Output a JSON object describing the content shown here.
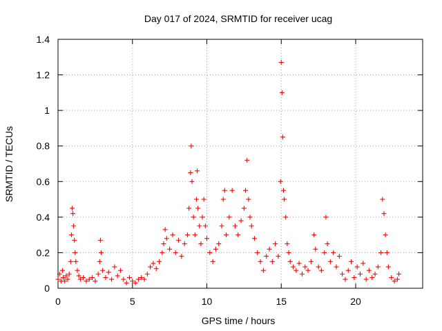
{
  "chart_data": {
    "type": "scatter",
    "title": "Day 017 of 2024, SRMTID for receiver ucag",
    "xlabel": "GPS time / hours",
    "ylabel": "SRMTID / TECUs",
    "xlim": [
      0,
      24.5
    ],
    "ylim": [
      0,
      1.4
    ],
    "xticks": [
      0,
      5,
      10,
      15,
      20
    ],
    "xtick_labels": [
      "0",
      "5",
      "10",
      "15",
      "20"
    ],
    "yticks": [
      0,
      0.2,
      0.4,
      0.6,
      0.8,
      1,
      1.2,
      1.4
    ],
    "ytick_labels": [
      "0",
      "0.2",
      "0.4",
      "0.6",
      "0.8",
      "1",
      "1.2",
      "1.4"
    ],
    "grid": true,
    "marker": "+",
    "color": "#ff0000",
    "series": [
      {
        "name": "SRMTID",
        "points": [
          [
            0.0,
            0.05
          ],
          [
            0.1,
            0.08
          ],
          [
            0.2,
            0.04
          ],
          [
            0.3,
            0.1
          ],
          [
            0.35,
            0.06
          ],
          [
            0.45,
            0.04
          ],
          [
            0.55,
            0.07
          ],
          [
            0.65,
            0.05
          ],
          [
            0.75,
            0.08
          ],
          [
            0.85,
            0.15
          ],
          [
            0.9,
            0.3
          ],
          [
            0.95,
            0.45
          ],
          [
            1.0,
            0.42
          ],
          [
            1.05,
            0.35
          ],
          [
            1.1,
            0.27
          ],
          [
            1.15,
            0.2
          ],
          [
            1.2,
            0.15
          ],
          [
            1.3,
            0.1
          ],
          [
            1.4,
            0.07
          ],
          [
            1.5,
            0.05
          ],
          [
            1.7,
            0.06
          ],
          [
            1.9,
            0.04
          ],
          [
            2.1,
            0.05
          ],
          [
            2.3,
            0.06
          ],
          [
            2.5,
            0.04
          ],
          [
            2.7,
            0.08
          ],
          [
            2.8,
            0.15
          ],
          [
            2.85,
            0.27
          ],
          [
            2.9,
            0.2
          ],
          [
            3.0,
            0.1
          ],
          [
            3.2,
            0.06
          ],
          [
            3.4,
            0.09
          ],
          [
            3.6,
            0.05
          ],
          [
            3.8,
            0.12
          ],
          [
            4.0,
            0.07
          ],
          [
            4.2,
            0.1
          ],
          [
            4.4,
            0.05
          ],
          [
            4.6,
            0.03
          ],
          [
            4.8,
            0.06
          ],
          [
            5.0,
            0.04
          ],
          [
            5.2,
            0.03
          ],
          [
            5.4,
            0.05
          ],
          [
            5.6,
            0.06
          ],
          [
            5.8,
            0.05
          ],
          [
            6.0,
            0.08
          ],
          [
            6.2,
            0.12
          ],
          [
            6.4,
            0.14
          ],
          [
            6.6,
            0.11
          ],
          [
            6.8,
            0.15
          ],
          [
            7.0,
            0.2
          ],
          [
            7.1,
            0.25
          ],
          [
            7.2,
            0.33
          ],
          [
            7.3,
            0.28
          ],
          [
            7.5,
            0.22
          ],
          [
            7.7,
            0.3
          ],
          [
            7.9,
            0.2
          ],
          [
            8.1,
            0.27
          ],
          [
            8.3,
            0.18
          ],
          [
            8.5,
            0.25
          ],
          [
            8.7,
            0.3
          ],
          [
            8.8,
            0.45
          ],
          [
            8.9,
            0.65
          ],
          [
            8.95,
            0.8
          ],
          [
            9.0,
            0.6
          ],
          [
            9.1,
            0.4
          ],
          [
            9.2,
            0.3
          ],
          [
            9.3,
            0.5
          ],
          [
            9.35,
            0.66
          ],
          [
            9.4,
            0.45
          ],
          [
            9.5,
            0.35
          ],
          [
            9.6,
            0.25
          ],
          [
            9.7,
            0.4
          ],
          [
            9.8,
            0.5
          ],
          [
            9.9,
            0.35
          ],
          [
            10.0,
            0.28
          ],
          [
            10.2,
            0.2
          ],
          [
            10.4,
            0.15
          ],
          [
            10.6,
            0.22
          ],
          [
            10.8,
            0.25
          ],
          [
            11.0,
            0.35
          ],
          [
            11.1,
            0.5
          ],
          [
            11.2,
            0.55
          ],
          [
            11.3,
            0.3
          ],
          [
            11.5,
            0.4
          ],
          [
            11.7,
            0.55
          ],
          [
            11.9,
            0.35
          ],
          [
            12.1,
            0.3
          ],
          [
            12.3,
            0.38
          ],
          [
            12.5,
            0.45
          ],
          [
            12.6,
            0.55
          ],
          [
            12.7,
            0.72
          ],
          [
            12.8,
            0.5
          ],
          [
            12.9,
            0.4
          ],
          [
            13.0,
            0.35
          ],
          [
            13.2,
            0.28
          ],
          [
            13.4,
            0.2
          ],
          [
            13.6,
            0.15
          ],
          [
            13.8,
            0.1
          ],
          [
            14.0,
            0.18
          ],
          [
            14.2,
            0.22
          ],
          [
            14.4,
            0.15
          ],
          [
            14.6,
            0.25
          ],
          [
            14.8,
            0.18
          ],
          [
            14.95,
            0.6
          ],
          [
            15.0,
            1.27
          ],
          [
            15.05,
            1.1
          ],
          [
            15.1,
            0.85
          ],
          [
            15.15,
            0.55
          ],
          [
            15.2,
            0.5
          ],
          [
            15.3,
            0.4
          ],
          [
            15.4,
            0.25
          ],
          [
            15.5,
            0.2
          ],
          [
            15.6,
            0.15
          ],
          [
            15.8,
            0.12
          ],
          [
            16.0,
            0.1
          ],
          [
            16.2,
            0.14
          ],
          [
            16.4,
            0.08
          ],
          [
            16.6,
            0.12
          ],
          [
            16.8,
            0.1
          ],
          [
            17.0,
            0.15
          ],
          [
            17.2,
            0.3
          ],
          [
            17.3,
            0.22
          ],
          [
            17.5,
            0.12
          ],
          [
            17.7,
            0.1
          ],
          [
            17.9,
            0.2
          ],
          [
            18.0,
            0.4
          ],
          [
            18.1,
            0.25
          ],
          [
            18.3,
            0.15
          ],
          [
            18.5,
            0.2
          ],
          [
            18.7,
            0.12
          ],
          [
            18.9,
            0.18
          ],
          [
            19.1,
            0.08
          ],
          [
            19.3,
            0.05
          ],
          [
            19.5,
            0.1
          ],
          [
            19.7,
            0.15
          ],
          [
            19.9,
            0.06
          ],
          [
            20.1,
            0.12
          ],
          [
            20.3,
            0.08
          ],
          [
            20.5,
            0.14
          ],
          [
            20.7,
            0.05
          ],
          [
            20.9,
            0.1
          ],
          [
            21.1,
            0.06
          ],
          [
            21.3,
            0.08
          ],
          [
            21.5,
            0.12
          ],
          [
            21.7,
            0.2
          ],
          [
            21.8,
            0.5
          ],
          [
            21.9,
            0.42
          ],
          [
            22.0,
            0.3
          ],
          [
            22.1,
            0.2
          ],
          [
            22.2,
            0.12
          ],
          [
            22.4,
            0.06
          ],
          [
            22.6,
            0.04
          ],
          [
            22.8,
            0.05
          ],
          [
            22.9,
            0.08
          ]
        ]
      }
    ]
  }
}
